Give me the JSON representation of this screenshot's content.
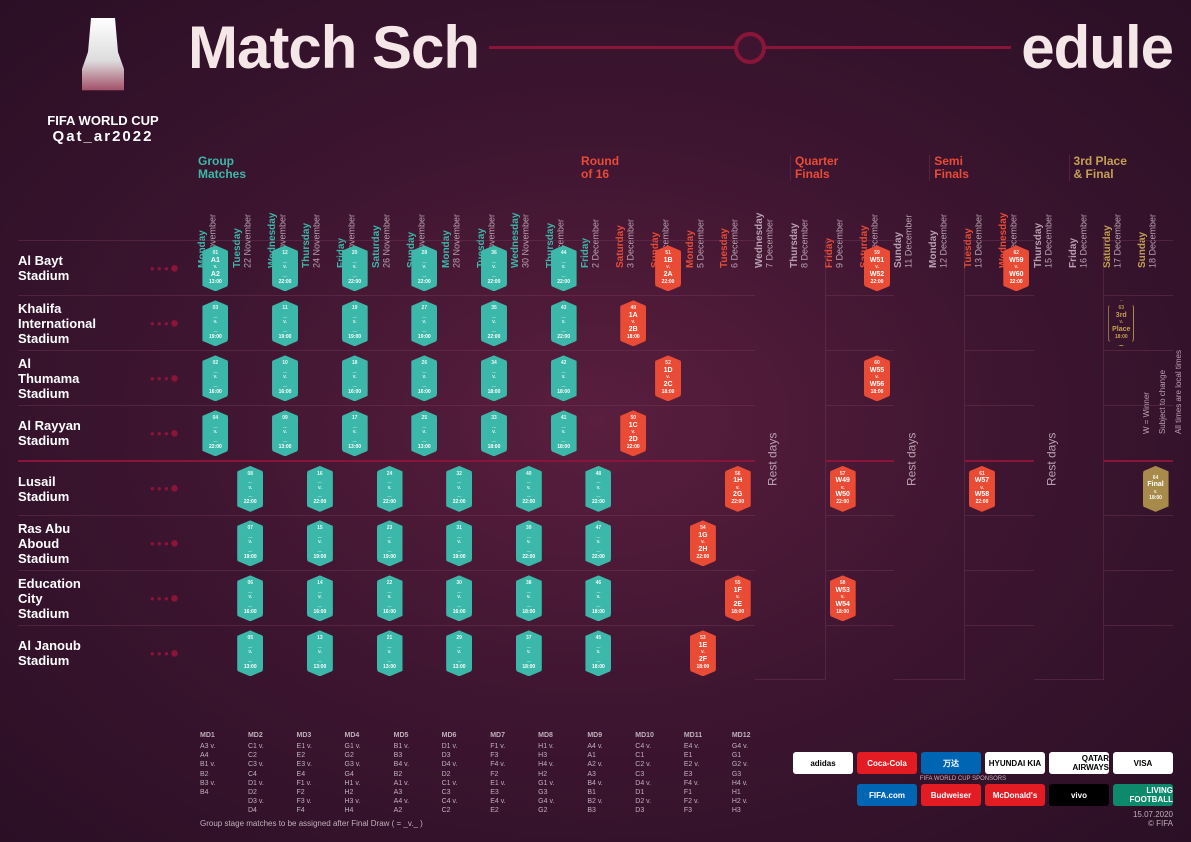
{
  "logo": {
    "line1": "FIFA WORLD CUP",
    "line2": "Qat_ar2022"
  },
  "title": {
    "a": "Match Sch",
    "b": "edule"
  },
  "stages": {
    "group": "Group\nMatches",
    "r16": "Round\nof 16",
    "qf": "Quarter\nFinals",
    "sf": "Semi\nFinals",
    "fin": "3rd Place\n& Final"
  },
  "dates": [
    {
      "day": "Monday",
      "dt": "21 November",
      "c": "teal"
    },
    {
      "day": "Tuesday",
      "dt": "22 November",
      "c": "teal"
    },
    {
      "day": "Wednesday",
      "dt": "23 November",
      "c": "teal"
    },
    {
      "day": "Thursday",
      "dt": "24 November",
      "c": "teal"
    },
    {
      "day": "Friday",
      "dt": "25 November",
      "c": "teal"
    },
    {
      "day": "Saturday",
      "dt": "26 November",
      "c": "teal"
    },
    {
      "day": "Sunday",
      "dt": "27 November",
      "c": "teal"
    },
    {
      "day": "Monday",
      "dt": "28 November",
      "c": "teal"
    },
    {
      "day": "Tuesday",
      "dt": "29 November",
      "c": "teal"
    },
    {
      "day": "Wednesday",
      "dt": "30 November",
      "c": "teal"
    },
    {
      "day": "Thursday",
      "dt": "1 December",
      "c": "teal"
    },
    {
      "day": "Friday",
      "dt": "2 December",
      "c": "teal"
    },
    {
      "day": "Saturday",
      "dt": "3 December",
      "c": "red"
    },
    {
      "day": "Sunday",
      "dt": "4 December",
      "c": "red"
    },
    {
      "day": "Monday",
      "dt": "5 December",
      "c": "red"
    },
    {
      "day": "Tuesday",
      "dt": "6 December",
      "c": "red"
    },
    {
      "day": "Wednesday",
      "dt": "7 December",
      "c": ""
    },
    {
      "day": "Thursday",
      "dt": "8 December",
      "c": ""
    },
    {
      "day": "Friday",
      "dt": "9 December",
      "c": "red"
    },
    {
      "day": "Saturday",
      "dt": "10 December",
      "c": "red"
    },
    {
      "day": "Sunday",
      "dt": "11 December",
      "c": ""
    },
    {
      "day": "Monday",
      "dt": "12 December",
      "c": ""
    },
    {
      "day": "Tuesday",
      "dt": "13 December",
      "c": "red"
    },
    {
      "day": "Wednesday",
      "dt": "14 December",
      "c": "red"
    },
    {
      "day": "Thursday",
      "dt": "15 December",
      "c": ""
    },
    {
      "day": "Friday",
      "dt": "16 December",
      "c": ""
    },
    {
      "day": "Saturday",
      "dt": "17 December",
      "c": "gold"
    },
    {
      "day": "Sunday",
      "dt": "18 December",
      "c": "gold"
    }
  ],
  "stadiums": [
    "Al Bayt\nStadium",
    "Khalifa\nInternational\nStadium",
    "Al\nThumama\nStadium",
    "Al Rayyan\nStadium",
    "Lusail\nStadium",
    "Ras Abu\nAboud\nStadium",
    "Education\nCity\nStadium",
    "Al Janoub\nStadium"
  ],
  "rest": "Rest days",
  "matches": [
    {
      "r": 0,
      "c": 0,
      "k": "teal",
      "n": "01",
      "t1": "A1",
      "t2": "A2",
      "tm": "13:00"
    },
    {
      "r": 0,
      "c": 2,
      "k": "teal",
      "n": "12",
      "t1": "_",
      "t2": "_",
      "tm": "22:00"
    },
    {
      "r": 0,
      "c": 4,
      "k": "teal",
      "n": "20",
      "t1": "_",
      "t2": "_",
      "tm": "22:00"
    },
    {
      "r": 0,
      "c": 6,
      "k": "teal",
      "n": "28",
      "t1": "_",
      "t2": "_",
      "tm": "22:00"
    },
    {
      "r": 0,
      "c": 8,
      "k": "teal",
      "n": "36",
      "t1": "_",
      "t2": "_",
      "tm": "22:00"
    },
    {
      "r": 0,
      "c": 10,
      "k": "teal",
      "n": "44",
      "t1": "_",
      "t2": "_",
      "tm": "22:00"
    },
    {
      "r": 0,
      "c": 13,
      "k": "red",
      "n": "51",
      "t1": "1B",
      "t2": "2A",
      "tm": "22:00"
    },
    {
      "r": 0,
      "c": 19,
      "k": "red",
      "n": "59",
      "t1": "W51",
      "t2": "W52",
      "tm": "22:00"
    },
    {
      "r": 0,
      "c": 23,
      "k": "red",
      "n": "62",
      "t1": "W59",
      "t2": "W60",
      "tm": "22:00"
    },
    {
      "r": 1,
      "c": 0,
      "k": "teal",
      "n": "03",
      "t1": "_",
      "t2": "_",
      "tm": "19:00"
    },
    {
      "r": 1,
      "c": 2,
      "k": "teal",
      "n": "11",
      "t1": "_",
      "t2": "_",
      "tm": "19:00"
    },
    {
      "r": 1,
      "c": 4,
      "k": "teal",
      "n": "19",
      "t1": "_",
      "t2": "_",
      "tm": "19:00"
    },
    {
      "r": 1,
      "c": 6,
      "k": "teal",
      "n": "27",
      "t1": "_",
      "t2": "_",
      "tm": "19:00"
    },
    {
      "r": 1,
      "c": 8,
      "k": "teal",
      "n": "35",
      "t1": "_",
      "t2": "_",
      "tm": "22:00"
    },
    {
      "r": 1,
      "c": 10,
      "k": "teal",
      "n": "43",
      "t1": "_",
      "t2": "_",
      "tm": "22:00"
    },
    {
      "r": 1,
      "c": 12,
      "k": "red",
      "n": "49",
      "t1": "1A",
      "t2": "2B",
      "tm": "18:00"
    },
    {
      "r": 1,
      "c": 26,
      "k": "outline",
      "n": "63",
      "t1": "3rd",
      "t2": "Place",
      "tm": "18:00"
    },
    {
      "r": 2,
      "c": 0,
      "k": "teal",
      "n": "02",
      "t1": "_",
      "t2": "_",
      "tm": "16:00"
    },
    {
      "r": 2,
      "c": 2,
      "k": "teal",
      "n": "10",
      "t1": "_",
      "t2": "_",
      "tm": "16:00"
    },
    {
      "r": 2,
      "c": 4,
      "k": "teal",
      "n": "18",
      "t1": "_",
      "t2": "_",
      "tm": "16:00"
    },
    {
      "r": 2,
      "c": 6,
      "k": "teal",
      "n": "26",
      "t1": "_",
      "t2": "_",
      "tm": "16:00"
    },
    {
      "r": 2,
      "c": 8,
      "k": "teal",
      "n": "34",
      "t1": "_",
      "t2": "_",
      "tm": "18:00"
    },
    {
      "r": 2,
      "c": 10,
      "k": "teal",
      "n": "42",
      "t1": "_",
      "t2": "_",
      "tm": "18:00"
    },
    {
      "r": 2,
      "c": 13,
      "k": "red",
      "n": "52",
      "t1": "1D",
      "t2": "2C",
      "tm": "18:00"
    },
    {
      "r": 2,
      "c": 19,
      "k": "red",
      "n": "60",
      "t1": "W55",
      "t2": "W56",
      "tm": "18:00"
    },
    {
      "r": 3,
      "c": 0,
      "k": "teal",
      "n": "04",
      "t1": "_",
      "t2": "_",
      "tm": "22:00"
    },
    {
      "r": 3,
      "c": 2,
      "k": "teal",
      "n": "09",
      "t1": "_",
      "t2": "_",
      "tm": "13:00"
    },
    {
      "r": 3,
      "c": 4,
      "k": "teal",
      "n": "17",
      "t1": "_",
      "t2": "_",
      "tm": "13:00"
    },
    {
      "r": 3,
      "c": 6,
      "k": "teal",
      "n": "25",
      "t1": "_",
      "t2": "_",
      "tm": "13:00"
    },
    {
      "r": 3,
      "c": 8,
      "k": "teal",
      "n": "33",
      "t1": "_",
      "t2": "_",
      "tm": "18:00"
    },
    {
      "r": 3,
      "c": 10,
      "k": "teal",
      "n": "41",
      "t1": "_",
      "t2": "_",
      "tm": "18:00"
    },
    {
      "r": 3,
      "c": 12,
      "k": "red",
      "n": "50",
      "t1": "1C",
      "t2": "2D",
      "tm": "22:00"
    },
    {
      "r": 4,
      "c": 1,
      "k": "teal",
      "n": "08",
      "t1": "_",
      "t2": "_",
      "tm": "22:00"
    },
    {
      "r": 4,
      "c": 3,
      "k": "teal",
      "n": "16",
      "t1": "_",
      "t2": "_",
      "tm": "22:00"
    },
    {
      "r": 4,
      "c": 5,
      "k": "teal",
      "n": "24",
      "t1": "_",
      "t2": "_",
      "tm": "22:00"
    },
    {
      "r": 4,
      "c": 7,
      "k": "teal",
      "n": "32",
      "t1": "_",
      "t2": "_",
      "tm": "22:00"
    },
    {
      "r": 4,
      "c": 9,
      "k": "teal",
      "n": "40",
      "t1": "_",
      "t2": "_",
      "tm": "22:00"
    },
    {
      "r": 4,
      "c": 11,
      "k": "teal",
      "n": "48",
      "t1": "_",
      "t2": "_",
      "tm": "22:00"
    },
    {
      "r": 4,
      "c": 15,
      "k": "red",
      "n": "56",
      "t1": "1H",
      "t2": "2G",
      "tm": "22:00"
    },
    {
      "r": 4,
      "c": 18,
      "k": "red",
      "n": "57",
      "t1": "W49",
      "t2": "W50",
      "tm": "22:00"
    },
    {
      "r": 4,
      "c": 22,
      "k": "red",
      "n": "61",
      "t1": "W57",
      "t2": "W58",
      "tm": "22:00"
    },
    {
      "r": 4,
      "c": 27,
      "k": "gold",
      "n": "64",
      "t1": "Final",
      "t2": "",
      "tm": "18:00"
    },
    {
      "r": 5,
      "c": 1,
      "k": "teal",
      "n": "07",
      "t1": "_",
      "t2": "_",
      "tm": "19:00"
    },
    {
      "r": 5,
      "c": 3,
      "k": "teal",
      "n": "15",
      "t1": "_",
      "t2": "_",
      "tm": "19:00"
    },
    {
      "r": 5,
      "c": 5,
      "k": "teal",
      "n": "23",
      "t1": "_",
      "t2": "_",
      "tm": "19:00"
    },
    {
      "r": 5,
      "c": 7,
      "k": "teal",
      "n": "31",
      "t1": "_",
      "t2": "_",
      "tm": "19:00"
    },
    {
      "r": 5,
      "c": 9,
      "k": "teal",
      "n": "39",
      "t1": "_",
      "t2": "_",
      "tm": "22:00"
    },
    {
      "r": 5,
      "c": 11,
      "k": "teal",
      "n": "47",
      "t1": "_",
      "t2": "_",
      "tm": "22:00"
    },
    {
      "r": 5,
      "c": 14,
      "k": "red",
      "n": "54",
      "t1": "1G",
      "t2": "2H",
      "tm": "22:00"
    },
    {
      "r": 6,
      "c": 1,
      "k": "teal",
      "n": "06",
      "t1": "_",
      "t2": "_",
      "tm": "16:00"
    },
    {
      "r": 6,
      "c": 3,
      "k": "teal",
      "n": "14",
      "t1": "_",
      "t2": "_",
      "tm": "16:00"
    },
    {
      "r": 6,
      "c": 5,
      "k": "teal",
      "n": "22",
      "t1": "_",
      "t2": "_",
      "tm": "16:00"
    },
    {
      "r": 6,
      "c": 7,
      "k": "teal",
      "n": "30",
      "t1": "_",
      "t2": "_",
      "tm": "16:00"
    },
    {
      "r": 6,
      "c": 9,
      "k": "teal",
      "n": "38",
      "t1": "_",
      "t2": "_",
      "tm": "18:00"
    },
    {
      "r": 6,
      "c": 11,
      "k": "teal",
      "n": "46",
      "t1": "_",
      "t2": "_",
      "tm": "18:00"
    },
    {
      "r": 6,
      "c": 15,
      "k": "red",
      "n": "55",
      "t1": "1F",
      "t2": "2E",
      "tm": "18:00"
    },
    {
      "r": 6,
      "c": 18,
      "k": "red",
      "n": "58",
      "t1": "W53",
      "t2": "W54",
      "tm": "18:00"
    },
    {
      "r": 7,
      "c": 1,
      "k": "teal",
      "n": "05",
      "t1": "_",
      "t2": "_",
      "tm": "13:00"
    },
    {
      "r": 7,
      "c": 3,
      "k": "teal",
      "n": "13",
      "t1": "_",
      "t2": "_",
      "tm": "13:00"
    },
    {
      "r": 7,
      "c": 5,
      "k": "teal",
      "n": "21",
      "t1": "_",
      "t2": "_",
      "tm": "13:00"
    },
    {
      "r": 7,
      "c": 7,
      "k": "teal",
      "n": "29",
      "t1": "_",
      "t2": "_",
      "tm": "13:00"
    },
    {
      "r": 7,
      "c": 9,
      "k": "teal",
      "n": "37",
      "t1": "_",
      "t2": "_",
      "tm": "18:00"
    },
    {
      "r": 7,
      "c": 11,
      "k": "teal",
      "n": "45",
      "t1": "_",
      "t2": "_",
      "tm": "18:00"
    },
    {
      "r": 7,
      "c": 14,
      "k": "red",
      "n": "53",
      "t1": "1E",
      "t2": "2F",
      "tm": "18:00"
    }
  ],
  "restCols": [
    16,
    17,
    20,
    21,
    24,
    25
  ],
  "md": [
    {
      "h": "MD1",
      "r": [
        "A3 v. A4",
        "B1 v. B2",
        "B3 v. B4"
      ]
    },
    {
      "h": "MD2",
      "r": [
        "C1 v. C2",
        "C3 v. C4",
        "D1 v. D2",
        "D3 v. D4"
      ]
    },
    {
      "h": "MD3",
      "r": [
        "E1 v. E2",
        "E3 v. E4",
        "F1 v. F2",
        "F3 v. F4"
      ]
    },
    {
      "h": "MD4",
      "r": [
        "G1 v. G2",
        "G3 v. G4",
        "H1 v. H2",
        "H3 v. H4"
      ]
    },
    {
      "h": "MD5",
      "r": [
        "B1 v. B3",
        "B4 v. B2",
        "A1 v. A3",
        "A4 v. A2"
      ]
    },
    {
      "h": "MD6",
      "r": [
        "D1 v. D3",
        "D4 v. D2",
        "C1 v. C3",
        "C4 v. C2"
      ]
    },
    {
      "h": "MD7",
      "r": [
        "F1 v. F3",
        "F4 v. F2",
        "E1 v. E3",
        "E4 v. E2"
      ]
    },
    {
      "h": "MD8",
      "r": [
        "H1 v. H3",
        "H4 v. H2",
        "G1 v. G3",
        "G4 v. G2"
      ]
    },
    {
      "h": "MD9",
      "r": [
        "A4 v. A1",
        "A2 v. A3",
        "B4 v. B1",
        "B2 v. B3"
      ]
    },
    {
      "h": "MD10",
      "r": [
        "C4 v. C1",
        "C2 v. C3",
        "D4 v. D1",
        "D2 v. D3"
      ]
    },
    {
      "h": "MD11",
      "r": [
        "E4 v. E1",
        "E2 v. E3",
        "F4 v. F1",
        "F2 v. F3"
      ]
    },
    {
      "h": "MD12",
      "r": [
        "G4 v. G1",
        "G2 v. G3",
        "H4 v. H1",
        "H2 v. H3"
      ]
    }
  ],
  "footnote": "Group stage matches to be assigned after Final Draw ( = _v._ )",
  "sponsors": [
    {
      "t": "adidas",
      "c": "sp-white"
    },
    {
      "t": "Coca-Cola",
      "c": "sp-red"
    },
    {
      "t": "万达",
      "c": "sp-blue"
    },
    {
      "t": "HYUNDAI KIA",
      "c": "sp-white"
    },
    {
      "t": "QATAR AIRWAYS",
      "c": "sp-white"
    },
    {
      "t": "VISA",
      "c": "sp-white"
    },
    {
      "t": "FIFA.com",
      "c": "sp-blue"
    },
    {
      "t": "Budweiser",
      "c": "sp-red"
    },
    {
      "t": "McDonald's",
      "c": "sp-red"
    },
    {
      "t": "vivo",
      "c": "sp-black"
    },
    {
      "t": "LIVING FOOTBALL",
      "c": "sp-teal"
    }
  ],
  "sponsorsLabel": "FIFA WORLD CUP SPONSORS",
  "meta": {
    "date": "15.07.2020",
    "copy": "© FIFA"
  },
  "side": [
    "W = Winner",
    "Subject to change",
    "All times are local times"
  ]
}
